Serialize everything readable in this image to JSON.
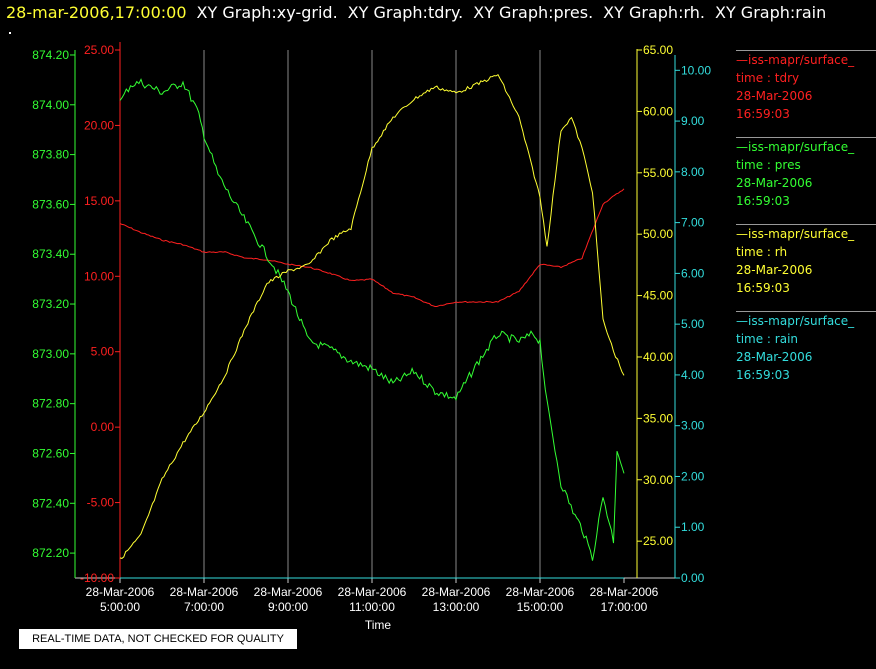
{
  "title": {
    "datetime": "28-mar-2006,17:00:00",
    "graphs": [
      "XY Graph:xy-grid.",
      "XY Graph:tdry.",
      "XY Graph:pres.",
      "XY Graph:rh.",
      "XY Graph:rain"
    ]
  },
  "notice": "REAL-TIME DATA, NOT CHECKED FOR QUALITY",
  "legend": [
    {
      "source": "—iss-mapr/surface_",
      "var": "time : tdry",
      "date": "28-Mar-2006",
      "time": "16:59:03",
      "color": "#ff2020"
    },
    {
      "source": "—iss-mapr/surface_",
      "var": "time : pres",
      "date": "28-Mar-2006",
      "time": "16:59:03",
      "color": "#33ff33"
    },
    {
      "source": "—iss-mapr/surface_",
      "var": "time : rh",
      "date": "28-Mar-2006",
      "time": "16:59:03",
      "color": "#ffff33"
    },
    {
      "source": "—iss-mapr/surface_",
      "var": "time : rain",
      "date": "28-Mar-2006",
      "time": "16:59:03",
      "color": "#33dddd"
    }
  ],
  "chart_data": {
    "type": "line",
    "xlabel": "Time",
    "x_ticks": [
      {
        "date": "28-Mar-2006",
        "time": "5:00:00"
      },
      {
        "date": "28-Mar-2006",
        "time": "7:00:00"
      },
      {
        "date": "28-Mar-2006",
        "time": "9:00:00"
      },
      {
        "date": "28-Mar-2006",
        "time": "11:00:00"
      },
      {
        "date": "28-Mar-2006",
        "time": "13:00:00"
      },
      {
        "date": "28-Mar-2006",
        "time": "15:00:00"
      },
      {
        "date": "28-Mar-2006",
        "time": "17:00:00"
      }
    ],
    "xlim": [
      "05:00",
      "17:00"
    ],
    "grid": "vertical",
    "axes": {
      "pres": {
        "color": "#33ff33",
        "ylim": [
          872.1,
          874.22
        ],
        "ticks": [
          "874.20",
          "874.00",
          "873.80",
          "873.60",
          "873.40",
          "873.20",
          "873.00",
          "872.80",
          "872.60",
          "872.40",
          "872.20"
        ]
      },
      "tdry": {
        "color": "#ff2020",
        "ylim": [
          -10,
          25
        ],
        "ticks": [
          "25.00",
          "20.00",
          "15.00",
          "10.00",
          "5.00",
          "0.00",
          "-5.00",
          "-10.00"
        ]
      },
      "rh": {
        "color": "#ffff33",
        "ylim": [
          22,
          65
        ],
        "ticks": [
          "65.00",
          "60.00",
          "55.00",
          "50.00",
          "45.00",
          "40.00",
          "35.00",
          "30.00",
          "25.00"
        ]
      },
      "rain": {
        "color": "#33dddd",
        "ylim": [
          0,
          10.4
        ],
        "ticks": [
          "10.00",
          "9.00",
          "8.00",
          "7.00",
          "6.00",
          "5.00",
          "4.00",
          "3.00",
          "2.00",
          "1.00",
          "0.00"
        ]
      }
    },
    "series": [
      {
        "name": "time : tdry",
        "axis": "tdry",
        "color": "#ff2020",
        "points": [
          [
            "05:00",
            13.5
          ],
          [
            "05:30",
            12.9
          ],
          [
            "06:00",
            12.4
          ],
          [
            "06:30",
            12.1
          ],
          [
            "07:00",
            11.6
          ],
          [
            "07:30",
            11.6
          ],
          [
            "08:00",
            11.2
          ],
          [
            "08:30",
            11.1
          ],
          [
            "09:00",
            10.8
          ],
          [
            "09:30",
            10.6
          ],
          [
            "10:00",
            10.2
          ],
          [
            "10:30",
            9.7
          ],
          [
            "11:00",
            9.8
          ],
          [
            "11:30",
            8.9
          ],
          [
            "12:00",
            8.6
          ],
          [
            "12:30",
            8.0
          ],
          [
            "13:00",
            8.3
          ],
          [
            "13:30",
            8.3
          ],
          [
            "14:00",
            8.3
          ],
          [
            "14:30",
            9.0
          ],
          [
            "15:00",
            10.8
          ],
          [
            "15:30",
            10.6
          ],
          [
            "16:00",
            11.2
          ],
          [
            "16:30",
            14.8
          ],
          [
            "17:00",
            15.8
          ]
        ]
      },
      {
        "name": "time : pres",
        "axis": "pres",
        "color": "#33ff33",
        "points": [
          [
            "05:00",
            874.01
          ],
          [
            "05:15",
            874.08
          ],
          [
            "05:30",
            874.09
          ],
          [
            "06:00",
            874.05
          ],
          [
            "06:30",
            874.09
          ],
          [
            "06:50",
            873.98
          ],
          [
            "07:00",
            873.88
          ],
          [
            "07:20",
            873.72
          ],
          [
            "07:40",
            873.62
          ],
          [
            "08:00",
            873.53
          ],
          [
            "08:20",
            873.44
          ],
          [
            "08:40",
            873.35
          ],
          [
            "09:00",
            873.25
          ],
          [
            "09:30",
            873.05
          ],
          [
            "10:00",
            873.02
          ],
          [
            "10:30",
            872.97
          ],
          [
            "11:00",
            872.94
          ],
          [
            "11:30",
            872.88
          ],
          [
            "12:00",
            872.93
          ],
          [
            "12:30",
            872.85
          ],
          [
            "13:00",
            872.82
          ],
          [
            "13:30",
            872.96
          ],
          [
            "14:00",
            873.08
          ],
          [
            "14:30",
            873.05
          ],
          [
            "14:50",
            873.08
          ],
          [
            "15:00",
            873.05
          ],
          [
            "15:10",
            872.8
          ],
          [
            "15:30",
            872.48
          ],
          [
            "15:50",
            872.35
          ],
          [
            "16:00",
            872.3
          ],
          [
            "16:15",
            872.18
          ],
          [
            "16:30",
            872.43
          ],
          [
            "16:45",
            872.25
          ],
          [
            "16:50",
            872.62
          ],
          [
            "17:00",
            872.52
          ]
        ]
      },
      {
        "name": "time : rh",
        "axis": "rh",
        "color": "#ffff33",
        "points": [
          [
            "05:00",
            23.5
          ],
          [
            "05:30",
            25.5
          ],
          [
            "06:00",
            30.0
          ],
          [
            "06:30",
            33.0
          ],
          [
            "07:00",
            35.5
          ],
          [
            "07:30",
            38.5
          ],
          [
            "08:00",
            42.5
          ],
          [
            "08:30",
            46.0
          ],
          [
            "09:00",
            47.0
          ],
          [
            "09:30",
            47.5
          ],
          [
            "10:00",
            49.5
          ],
          [
            "10:30",
            50.5
          ],
          [
            "11:00",
            57.0
          ],
          [
            "11:30",
            59.5
          ],
          [
            "12:00",
            61.0
          ],
          [
            "12:30",
            62.0
          ],
          [
            "13:00",
            61.5
          ],
          [
            "13:30",
            62.2
          ],
          [
            "14:00",
            63.0
          ],
          [
            "14:30",
            59.5
          ],
          [
            "15:00",
            53.0
          ],
          [
            "15:10",
            49.0
          ],
          [
            "15:30",
            58.5
          ],
          [
            "15:45",
            59.5
          ],
          [
            "16:00",
            57.0
          ],
          [
            "16:15",
            53.5
          ],
          [
            "16:30",
            43.0
          ],
          [
            "16:45",
            40.5
          ],
          [
            "17:00",
            38.5
          ]
        ]
      },
      {
        "name": "time : rain",
        "axis": "rain",
        "color": "#33dddd",
        "points": [
          [
            "05:00",
            0.0
          ],
          [
            "17:00",
            0.0
          ]
        ]
      }
    ]
  }
}
